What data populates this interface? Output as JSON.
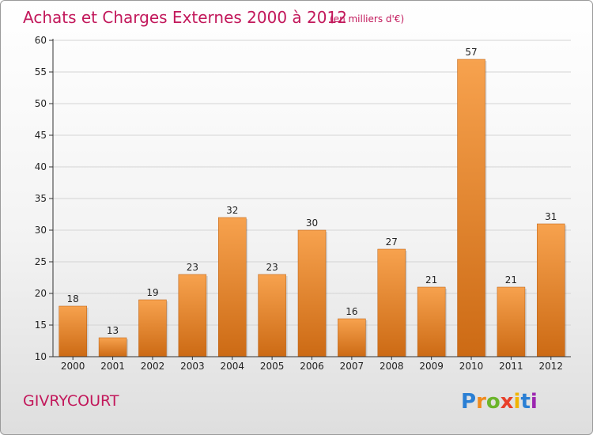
{
  "chart_data": {
    "type": "bar",
    "title": "Achats et Charges Externes 2000 à 2012",
    "subtitle": "(en milliers d'€)",
    "categories": [
      "2000",
      "2001",
      "2002",
      "2003",
      "2004",
      "2005",
      "2006",
      "2007",
      "2008",
      "2009",
      "2010",
      "2011",
      "2012"
    ],
    "values": [
      18,
      13,
      19,
      23,
      32,
      23,
      30,
      16,
      27,
      21,
      57,
      21,
      31
    ],
    "ylim": [
      10,
      60
    ],
    "yticks": [
      10,
      15,
      20,
      25,
      30,
      35,
      40,
      45,
      50,
      55,
      60
    ],
    "xlabel": "",
    "ylabel": "",
    "grid": true,
    "legend": "none",
    "colors": {
      "bar_light": "#f7a24e",
      "bar_dark": "#cc6a14",
      "axis": "#333333"
    }
  },
  "place_name": "GIVRYCOURT",
  "logo": {
    "letters": [
      "P",
      "r",
      "o",
      "x",
      "i",
      "t",
      "i"
    ],
    "colors": [
      "#2a7fd4",
      "#f08a1c",
      "#6bb52b",
      "#e8402a",
      "#f0b400",
      "#2a7fd4",
      "#9c27b0"
    ]
  }
}
